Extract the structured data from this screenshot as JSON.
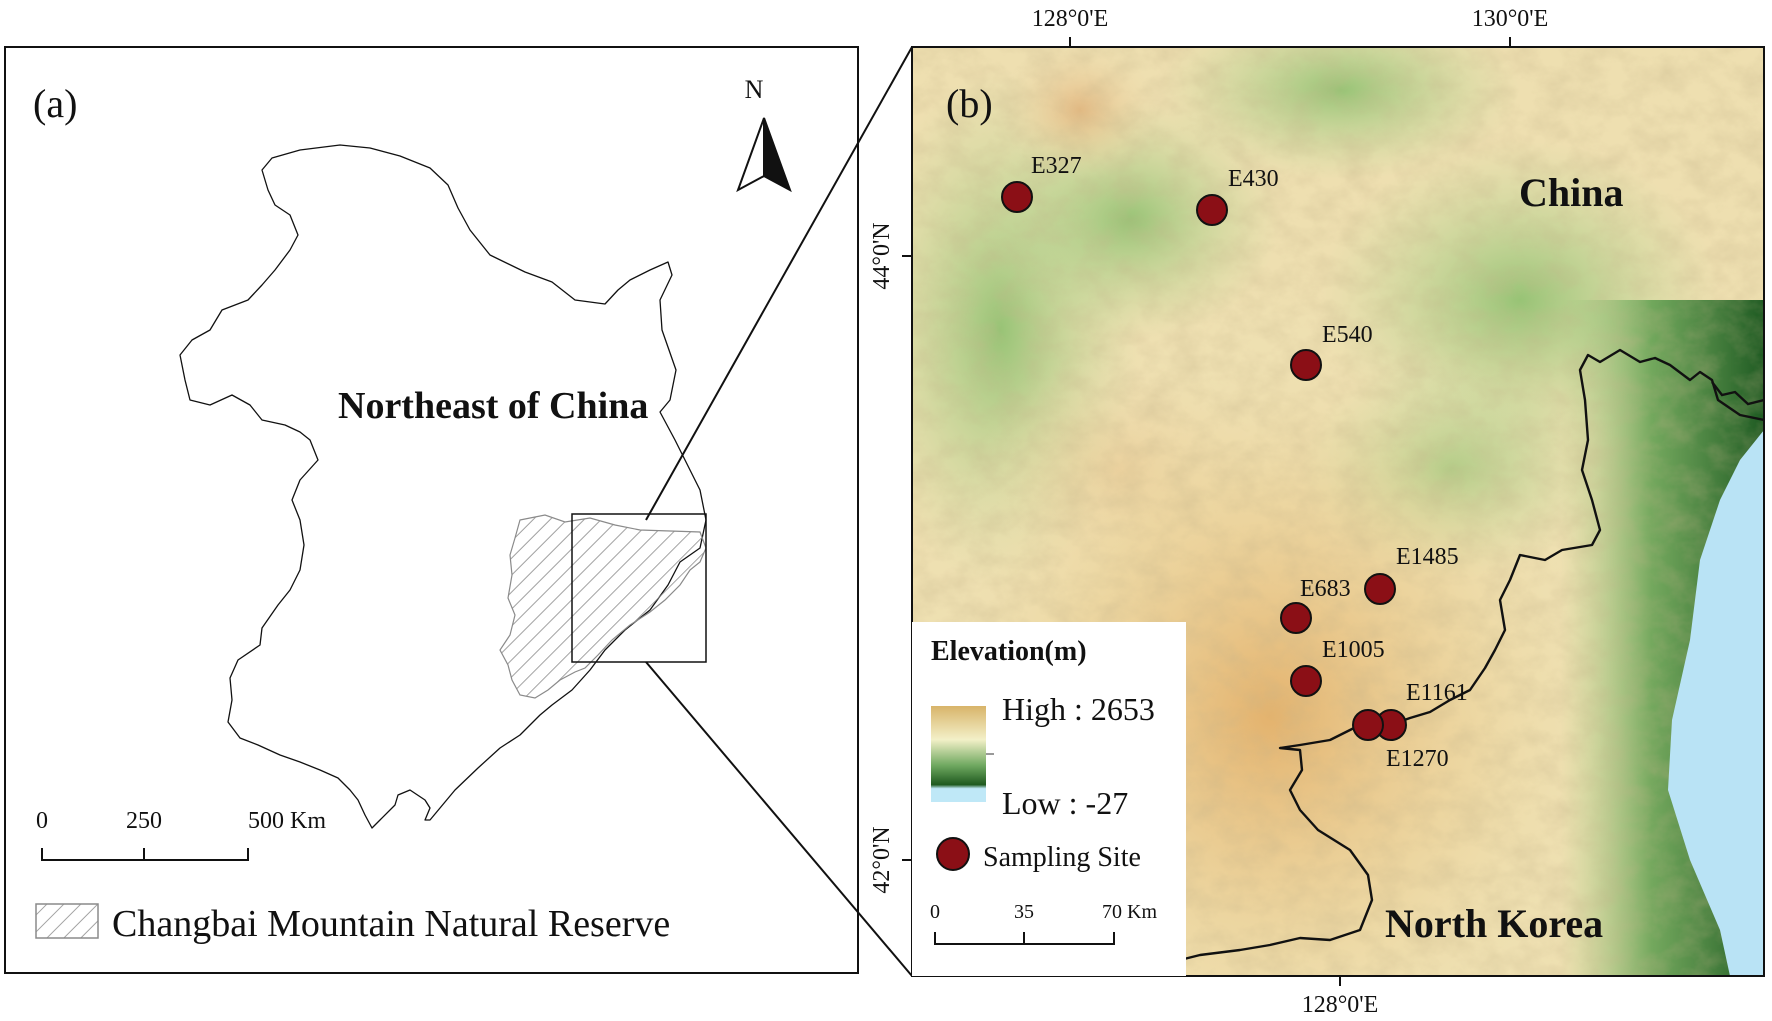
{
  "panel_a": {
    "label": "(a)",
    "region_label": "Northeast of China",
    "north_arrow": "N",
    "scale_bar": {
      "ticks": [
        "0",
        "250",
        "500 Km"
      ]
    },
    "legend": {
      "item_label": "Changbai Mountain Natural Reserve",
      "icon": "hatched-swatch"
    }
  },
  "panel_b": {
    "label": "(b)",
    "country_labels": {
      "china": "China",
      "north_korea": "North Korea"
    },
    "graticule": {
      "top": [
        "128°0'E",
        "130°0'E"
      ],
      "bottom": [
        "128°0'E"
      ],
      "left": [
        "44°0'N",
        "42°0'N"
      ]
    },
    "legend": {
      "title": "Elevation(m)",
      "high": "High : 2653",
      "low": "Low : -27",
      "site_label": "Sampling Site",
      "ramp_colors": [
        "#d8b46a",
        "#f3f0c8",
        "#6fa860",
        "#1f5a1f",
        "#bfe8f7"
      ]
    },
    "scale_bar": {
      "ticks": [
        "0",
        "35",
        "70 Km"
      ]
    },
    "sites": [
      {
        "id": "E327"
      },
      {
        "id": "E430"
      },
      {
        "id": "E540"
      },
      {
        "id": "E1485"
      },
      {
        "id": "E683"
      },
      {
        "id": "E1005"
      },
      {
        "id": "E1161"
      },
      {
        "id": "E1270"
      }
    ],
    "marker_color": "#8b0f16"
  }
}
